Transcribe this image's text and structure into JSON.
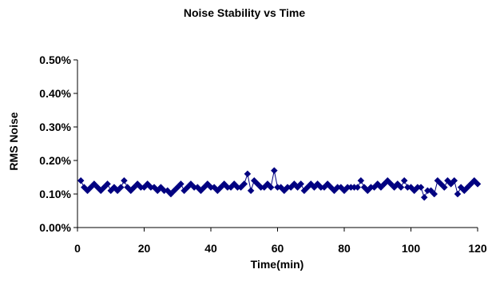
{
  "chart_data": {
    "type": "line",
    "title": "Noise Stability vs Time",
    "xlabel": "Time(min)",
    "ylabel": "RMS Noise",
    "xlim": [
      0,
      120
    ],
    "ylim": [
      0.0,
      0.5
    ],
    "x_ticks": [
      0,
      20,
      40,
      60,
      80,
      100,
      120
    ],
    "x_tick_labels": [
      "0",
      "20",
      "40",
      "60",
      "80",
      "100",
      "120"
    ],
    "y_ticks": [
      0.0,
      0.1,
      0.2,
      0.3,
      0.4,
      0.5
    ],
    "y_tick_labels": [
      "0.00%",
      "0.10%",
      "0.20%",
      "0.30%",
      "0.40%",
      "0.50%"
    ],
    "grid": false,
    "legend": "none",
    "marker": "diamond",
    "color": "#000080",
    "series": [
      {
        "x": [
          1,
          2,
          3,
          4,
          5,
          6,
          7,
          8,
          9,
          10,
          11,
          12,
          13,
          14,
          15,
          16,
          17,
          18,
          19,
          20,
          21,
          22,
          23,
          24,
          25,
          26,
          27,
          28,
          29,
          30,
          31,
          32,
          33,
          34,
          35,
          36,
          37,
          38,
          39,
          40,
          41,
          42,
          43,
          44,
          45,
          46,
          47,
          48,
          49,
          50,
          51,
          52,
          53,
          54,
          55,
          56,
          57,
          58,
          59,
          60,
          61,
          62,
          63,
          64,
          65,
          66,
          67,
          68,
          69,
          70,
          71,
          72,
          73,
          74,
          75,
          76,
          77,
          78,
          79,
          80,
          81,
          82,
          83,
          84,
          85,
          86,
          87,
          88,
          89,
          90,
          91,
          92,
          93,
          94,
          95,
          96,
          97,
          98,
          99,
          100,
          101,
          102,
          103,
          104,
          105,
          106,
          107,
          108,
          109,
          110,
          111,
          112,
          113,
          114,
          115,
          116,
          117,
          118,
          119,
          120
        ],
        "y": [
          0.14,
          0.12,
          0.11,
          0.12,
          0.13,
          0.12,
          0.11,
          0.12,
          0.13,
          0.11,
          0.12,
          0.11,
          0.12,
          0.14,
          0.12,
          0.11,
          0.12,
          0.13,
          0.12,
          0.12,
          0.13,
          0.12,
          0.12,
          0.11,
          0.12,
          0.11,
          0.11,
          0.1,
          0.11,
          0.12,
          0.13,
          0.11,
          0.12,
          0.13,
          0.12,
          0.12,
          0.11,
          0.12,
          0.13,
          0.12,
          0.12,
          0.11,
          0.12,
          0.13,
          0.12,
          0.12,
          0.13,
          0.12,
          0.12,
          0.13,
          0.16,
          0.11,
          0.14,
          0.13,
          0.12,
          0.12,
          0.13,
          0.12,
          0.17,
          0.12,
          0.12,
          0.11,
          0.12,
          0.12,
          0.13,
          0.12,
          0.13,
          0.11,
          0.12,
          0.13,
          0.12,
          0.13,
          0.12,
          0.12,
          0.13,
          0.12,
          0.11,
          0.12,
          0.12,
          0.11,
          0.12,
          0.12,
          0.12,
          0.12,
          0.14,
          0.12,
          0.11,
          0.12,
          0.12,
          0.13,
          0.12,
          0.13,
          0.14,
          0.13,
          0.12,
          0.13,
          0.12,
          0.14,
          0.12,
          0.12,
          0.11,
          0.12,
          0.12,
          0.09,
          0.11,
          0.11,
          0.1,
          0.14,
          0.13,
          0.12,
          0.14,
          0.13,
          0.14,
          0.1,
          0.12,
          0.11,
          0.12,
          0.13,
          0.14,
          0.13
        ]
      }
    ]
  }
}
